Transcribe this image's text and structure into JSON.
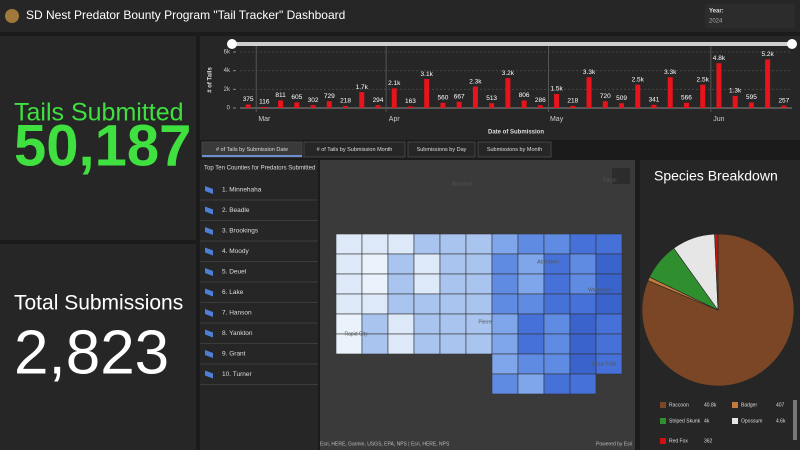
{
  "header": {
    "title": "SD Nest Predator Bounty Program \"Tail Tracker\" Dashboard",
    "year_label": "Year:",
    "year": "2024"
  },
  "kpis": [
    {
      "label": "Tails Submitted",
      "value": "50,187"
    },
    {
      "label": "Total Submissions",
      "value": "2,823"
    }
  ],
  "timeline_chart": {
    "type": "bar",
    "x_label": "Date of Submission",
    "y_label": "# of Tails",
    "categories": [
      null,
      "Mar",
      null,
      null,
      null,
      null,
      null,
      null,
      null,
      "Apr",
      null,
      null,
      null,
      null,
      null,
      null,
      null,
      null,
      null,
      "May",
      null,
      null,
      null,
      null,
      null,
      null,
      null,
      null,
      null,
      "Jun",
      null,
      null,
      null,
      null
    ],
    "values": [
      375,
      116,
      811,
      605,
      302,
      729,
      218,
      1700,
      294,
      2100,
      163,
      3100,
      560,
      667,
      2300,
      513,
      3200,
      806,
      286,
      1500,
      218,
      3300,
      720,
      509,
      2500,
      341,
      3300,
      566,
      2500,
      4800,
      1300,
      595,
      5200,
      257
    ],
    "value_labels": [
      "375",
      "116",
      "811",
      "605",
      "302",
      "729",
      "218",
      "1.7k",
      "294",
      "2.1k",
      "163",
      "3.1k",
      "560",
      "667",
      "2.3k",
      "513",
      "3.2k",
      "806",
      "286",
      "1.5k",
      "218",
      "3.3k",
      "720",
      "509",
      "2.5k",
      "341",
      "3.3k",
      "566",
      "2.5k",
      "4.8k",
      "1.3k",
      "595",
      "5.2k",
      "257"
    ],
    "color": "#e8141b",
    "ylim": [
      0,
      6000
    ],
    "yticks": [
      0,
      {
        "value": 2000,
        "label": "2k"
      },
      {
        "value": 4000,
        "label": "4k"
      },
      {
        "value": 6000,
        "label": "6k"
      }
    ],
    "grid": true
  },
  "tabs": [
    "# of Tails by Submission Date",
    "# of Tails by Submission Month",
    "Submissions by Day",
    "Submissions by Month"
  ],
  "county_list": {
    "title": "Top Ten Counties for Predators Submitted",
    "items": [
      "1. Minnehaha",
      "2. Beadle",
      "3. Brookings",
      "4. Moody",
      "5. Deuel",
      "6. Lake",
      "7. Hanson",
      "8. Yankton",
      "9. Grant",
      "10. Turner"
    ]
  },
  "map": {
    "labels": [
      "Bismarck",
      "Fargo",
      "Aberdeen",
      "Watertown",
      "Pierre",
      "Rapid City",
      "Sioux Falls"
    ],
    "attribution": "Esri, HERE, Garmin, USGS, EPA, NPS | Esri, HERE, NPS",
    "credit": "Powered by Esri"
  },
  "species_chart": {
    "type": "pie",
    "title": "Species Breakdown",
    "categories": [
      "Raccoon",
      "Badger",
      "Striped Skunk",
      "Opossum",
      "Red Fox"
    ],
    "values": [
      40800,
      407,
      4000,
      4600,
      362
    ],
    "value_labels": [
      "40.8k",
      "407",
      "4k",
      "4.6k",
      "362"
    ],
    "colors": [
      "#7a4626",
      "#c47a3c",
      "#2f8f2f",
      "#e6e6e6",
      "#cc1111"
    ]
  }
}
